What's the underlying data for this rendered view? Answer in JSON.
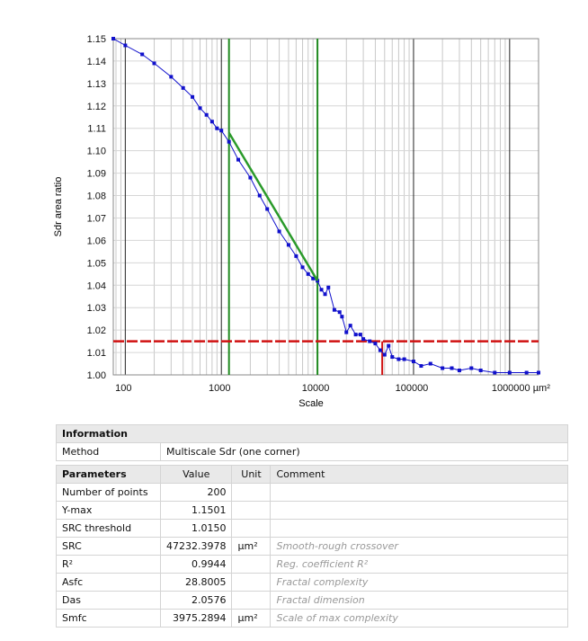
{
  "chart_data": {
    "type": "scatter",
    "xlabel": "Scale",
    "ylabel": "Sdr area ratio",
    "x_scale": "log",
    "x_unit": "µm²",
    "xlim": [
      75,
      2000000
    ],
    "ylim": [
      1.0,
      1.15
    ],
    "x_tick_labels": [
      "100",
      "1000",
      "10000",
      "100000",
      "1000000 µm²"
    ],
    "y_tick_labels": [
      "1.00",
      "1.01",
      "1.02",
      "1.03",
      "1.04",
      "1.05",
      "1.06",
      "1.07",
      "1.08",
      "1.09",
      "1.10",
      "1.11",
      "1.12",
      "1.13",
      "1.14",
      "1.15"
    ],
    "grid": true,
    "series": [
      {
        "color": "#1010cc",
        "x": [
          75,
          100,
          150,
          200,
          300,
          400,
          500,
          600,
          700,
          800,
          900,
          1000,
          1200,
          1500,
          2000,
          2500,
          3000,
          4000,
          5000,
          6000,
          7000,
          8000,
          9000,
          10000,
          11000,
          12000,
          13000,
          15000,
          17000,
          18000,
          20000,
          22000,
          25000,
          28000,
          30000,
          35000,
          40000,
          45000,
          50000,
          55000,
          60000,
          70000,
          80000,
          100000,
          120000,
          150000,
          200000,
          250000,
          300000,
          400000,
          500000,
          700000,
          1000000,
          1500000,
          2000000
        ],
        "y": [
          1.15,
          1.147,
          1.143,
          1.139,
          1.133,
          1.128,
          1.124,
          1.119,
          1.116,
          1.113,
          1.11,
          1.109,
          1.104,
          1.096,
          1.088,
          1.08,
          1.074,
          1.064,
          1.058,
          1.053,
          1.048,
          1.045,
          1.043,
          1.042,
          1.038,
          1.036,
          1.039,
          1.029,
          1.028,
          1.026,
          1.019,
          1.022,
          1.018,
          1.018,
          1.016,
          1.015,
          1.014,
          1.011,
          1.009,
          1.013,
          1.008,
          1.007,
          1.007,
          1.006,
          1.004,
          1.005,
          1.003,
          1.003,
          1.002,
          1.003,
          1.002,
          1.001,
          1.001,
          1.001,
          1.001
        ]
      }
    ],
    "fit_line": {
      "color": "#2a9a2a",
      "x": [
        1200,
        10000
      ],
      "y": [
        1.108,
        1.042
      ]
    },
    "vertical_markers": {
      "color": "#1f8a1f",
      "x": [
        1200,
        10000
      ]
    },
    "threshold_line": {
      "color": "#d01010",
      "y": 1.015
    },
    "crossover_marker": {
      "color": "#d01010",
      "x": 47232.3978,
      "y": 1.015
    }
  },
  "information": {
    "title": "Information",
    "method_label": "Method",
    "method_value": "Multiscale Sdr (one corner)"
  },
  "parameters": {
    "headers": [
      "Parameters",
      "Value",
      "Unit",
      "Comment"
    ],
    "rows": [
      {
        "name": "Number of points",
        "value": "200",
        "unit": "",
        "comment": ""
      },
      {
        "name": "Y-max",
        "value": "1.1501",
        "unit": "",
        "comment": ""
      },
      {
        "name": "SRC threshold",
        "value": "1.0150",
        "unit": "",
        "comment": ""
      },
      {
        "name": "SRC",
        "value": "47232.3978",
        "unit": "µm²",
        "comment": "Smooth-rough crossover"
      },
      {
        "name": "R²",
        "value": "0.9944",
        "unit": "",
        "comment": "Reg. coefficient R²"
      },
      {
        "name": "Asfc",
        "value": "28.8005",
        "unit": "",
        "comment": "Fractal complexity"
      },
      {
        "name": "Das",
        "value": "2.0576",
        "unit": "",
        "comment": "Fractal dimension"
      },
      {
        "name": "Smfc",
        "value": "3975.2894",
        "unit": "µm²",
        "comment": "Scale of max complexity"
      }
    ]
  }
}
